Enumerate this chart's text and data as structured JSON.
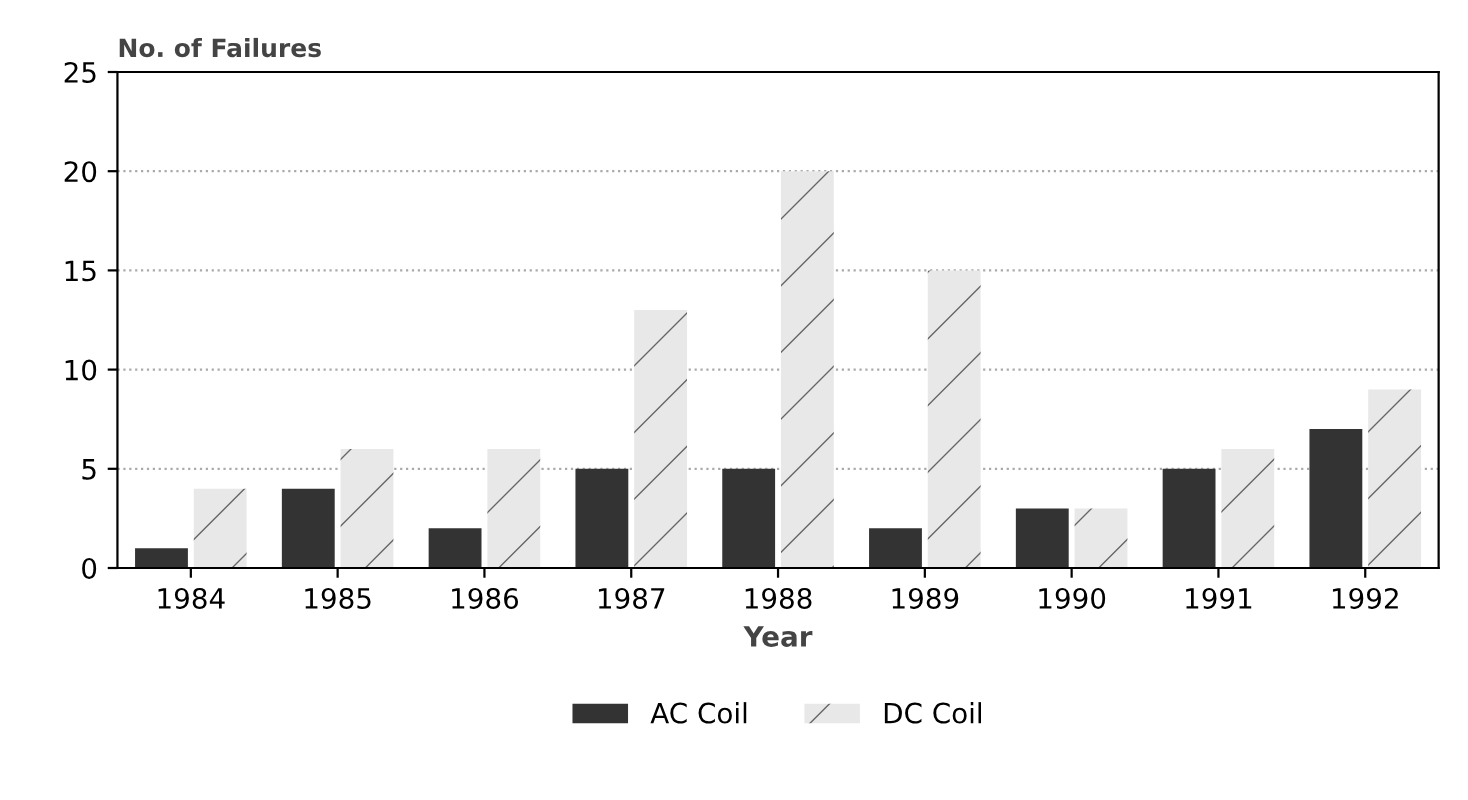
{
  "chart_data": {
    "type": "bar",
    "ylabel": "No. of Failures",
    "xlabel": "Year",
    "categories": [
      "1984",
      "1985",
      "1986",
      "1987",
      "1988",
      "1989",
      "1990",
      "1991",
      "1992"
    ],
    "series": [
      {
        "name": "AC Coil",
        "color": "#333333",
        "values": [
          1,
          4,
          2,
          5,
          5,
          2,
          3,
          5,
          7
        ]
      },
      {
        "name": "DC Coil",
        "color": "#e8e8e8",
        "values": [
          4,
          6,
          6,
          13,
          20,
          15,
          3,
          6,
          9
        ]
      }
    ],
    "ylim": [
      0,
      25
    ],
    "yticks": [
      0,
      5,
      10,
      15,
      20,
      25
    ],
    "grid": "y",
    "legend": "bottom"
  }
}
